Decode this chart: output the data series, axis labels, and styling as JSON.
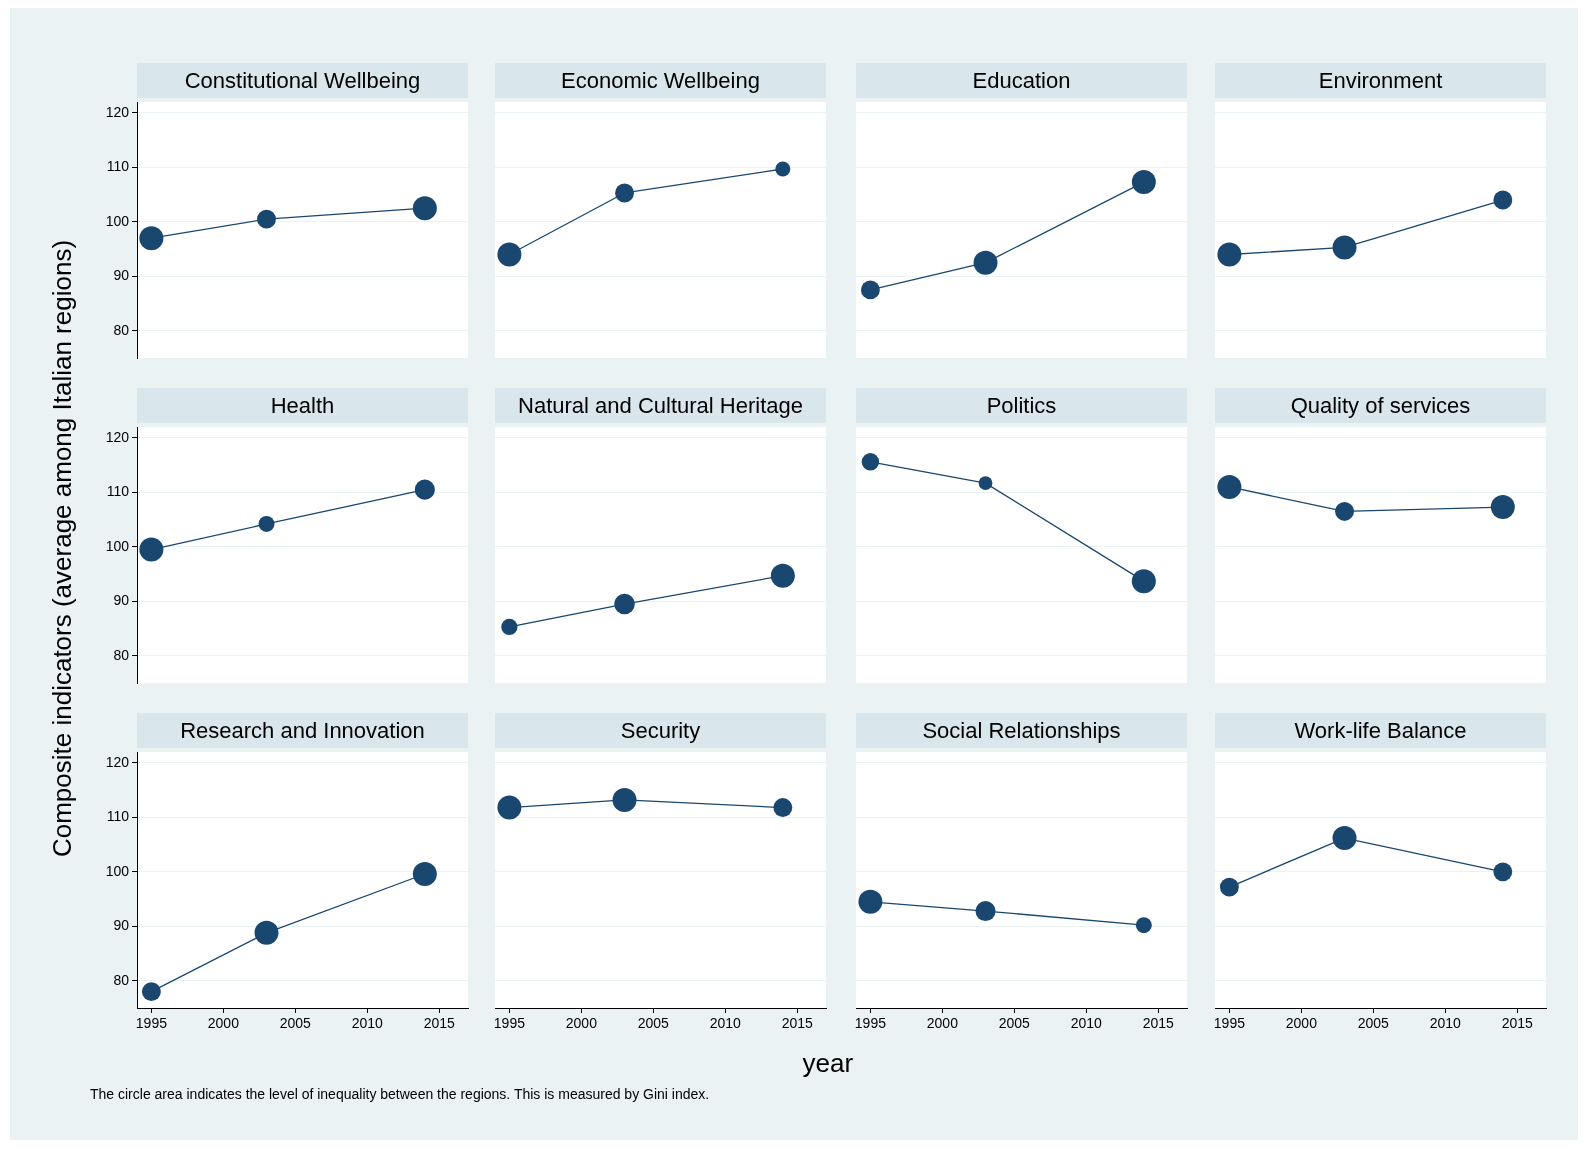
{
  "chart_data": [
    {
      "type": "bubble",
      "title": "Constitutional Wellbeing",
      "x": [
        1995,
        2003,
        2014
      ],
      "series": [
        {
          "type": "line",
          "color": "#1a476f",
          "values": [
            97,
            100.5,
            102.5
          ]
        },
        {
          "type": "bubble",
          "color": "#1a476f",
          "values": [
            97,
            100.5,
            102.5
          ],
          "sizes": [
            1,
            0.62,
            1
          ]
        }
      ],
      "xlim": [
        1994,
        2017
      ],
      "xticks": [
        1995,
        2000,
        2005,
        2010,
        2015
      ],
      "ylim": [
        75,
        122
      ],
      "yticks": [
        80,
        90,
        100,
        110,
        120
      ],
      "grid": "y",
      "tick_labels": "y"
    },
    {
      "type": "bubble",
      "title": "Economic Wellbeing",
      "x": [
        1995,
        2003,
        2014
      ],
      "series": [
        {
          "type": "line",
          "color": "#1a476f",
          "values": [
            94,
            105.3,
            109.7
          ]
        },
        {
          "type": "bubble",
          "color": "#1a476f",
          "values": [
            94,
            105.3,
            109.7
          ],
          "sizes": [
            1,
            0.62,
            0.39
          ]
        }
      ],
      "xlim": [
        1994,
        2017
      ],
      "xticks": [
        1995,
        2000,
        2005,
        2010,
        2015
      ],
      "ylim": [
        75,
        122
      ],
      "yticks": [
        80,
        90,
        100,
        110,
        120
      ],
      "grid": "y",
      "tick_labels": false
    },
    {
      "type": "bubble",
      "title": "Education",
      "x": [
        1995,
        2003,
        2014
      ],
      "series": [
        {
          "type": "line",
          "color": "#1a476f",
          "values": [
            87.5,
            92.5,
            107.3
          ]
        },
        {
          "type": "bubble",
          "color": "#1a476f",
          "values": [
            87.5,
            92.5,
            107.3
          ],
          "sizes": [
            0.62,
            1,
            1
          ]
        }
      ],
      "xlim": [
        1994,
        2017
      ],
      "xticks": [
        1995,
        2000,
        2005,
        2010,
        2015
      ],
      "ylim": [
        75,
        122
      ],
      "yticks": [
        80,
        90,
        100,
        110,
        120
      ],
      "grid": "y",
      "tick_labels": false
    },
    {
      "type": "bubble",
      "title": "Environment",
      "x": [
        1995,
        2003,
        2014
      ],
      "series": [
        {
          "type": "line",
          "color": "#1a476f",
          "values": [
            94,
            95.3,
            104
          ]
        },
        {
          "type": "bubble",
          "color": "#1a476f",
          "values": [
            94,
            95.3,
            104
          ],
          "sizes": [
            1,
            1,
            0.62
          ]
        }
      ],
      "xlim": [
        1994,
        2017
      ],
      "xticks": [
        1995,
        2000,
        2005,
        2010,
        2015
      ],
      "ylim": [
        75,
        122
      ],
      "yticks": [
        80,
        90,
        100,
        110,
        120
      ],
      "grid": "y",
      "tick_labels": false
    },
    {
      "type": "bubble",
      "title": "Health",
      "ylabel": "Composite indicators (average among Italian regions)",
      "x": [
        1995,
        2003,
        2014
      ],
      "series": [
        {
          "type": "line",
          "color": "#1a476f",
          "values": [
            99.5,
            104.2,
            110.5
          ]
        },
        {
          "type": "bubble",
          "color": "#1a476f",
          "values": [
            99.5,
            104.2,
            110.5
          ],
          "sizes": [
            1,
            0.44,
            0.7
          ]
        }
      ],
      "xlim": [
        1994,
        2017
      ],
      "xticks": [
        1995,
        2000,
        2005,
        2010,
        2015
      ],
      "ylim": [
        75,
        122
      ],
      "yticks": [
        80,
        90,
        100,
        110,
        120
      ],
      "grid": "y",
      "tick_labels": "y"
    },
    {
      "type": "bubble",
      "title": "Natural and Cultural Heritage",
      "x": [
        1995,
        2003,
        2014
      ],
      "series": [
        {
          "type": "line",
          "color": "#1a476f",
          "values": [
            85.3,
            89.5,
            94.7
          ]
        },
        {
          "type": "bubble",
          "color": "#1a476f",
          "values": [
            85.3,
            89.5,
            94.7
          ],
          "sizes": [
            0.46,
            0.74,
            1
          ]
        }
      ],
      "xlim": [
        1994,
        2017
      ],
      "xticks": [
        1995,
        2000,
        2005,
        2010,
        2015
      ],
      "ylim": [
        75,
        122
      ],
      "yticks": [
        80,
        90,
        100,
        110,
        120
      ],
      "grid": "y",
      "tick_labels": false
    },
    {
      "type": "bubble",
      "title": "Politics",
      "x": [
        1995,
        2003,
        2014
      ],
      "series": [
        {
          "type": "line",
          "color": "#1a476f",
          "values": [
            115.6,
            111.7,
            93.7
          ]
        },
        {
          "type": "bubble",
          "color": "#1a476f",
          "values": [
            115.6,
            111.7,
            93.7
          ],
          "sizes": [
            0.53,
            0.33,
            1
          ]
        }
      ],
      "xlim": [
        1994,
        2017
      ],
      "xticks": [
        1995,
        2000,
        2005,
        2010,
        2015
      ],
      "ylim": [
        75,
        122
      ],
      "yticks": [
        80,
        90,
        100,
        110,
        120
      ],
      "grid": "y",
      "tick_labels": false
    },
    {
      "type": "bubble",
      "title": "Quality of services",
      "x": [
        1995,
        2003,
        2014
      ],
      "series": [
        {
          "type": "line",
          "color": "#1a476f",
          "values": [
            111,
            106.5,
            107.3
          ]
        },
        {
          "type": "bubble",
          "color": "#1a476f",
          "values": [
            111,
            106.5,
            107.3
          ],
          "sizes": [
            1,
            0.62,
            1
          ]
        }
      ],
      "xlim": [
        1994,
        2017
      ],
      "xticks": [
        1995,
        2000,
        2005,
        2010,
        2015
      ],
      "ylim": [
        75,
        122
      ],
      "yticks": [
        80,
        90,
        100,
        110,
        120
      ],
      "grid": "y",
      "tick_labels": false
    },
    {
      "type": "bubble",
      "title": "Research and Innovation",
      "annotations": [
        "The circle area indicates the level of inequality between the regions. This is measured by Gini index."
      ],
      "x": [
        1995,
        2003,
        2014
      ],
      "series": [
        {
          "type": "line",
          "color": "#1a476f",
          "values": [
            78,
            88.8,
            99.6
          ]
        },
        {
          "type": "bubble",
          "color": "#1a476f",
          "values": [
            78,
            88.8,
            99.6
          ],
          "sizes": [
            0.62,
            1,
            1
          ]
        }
      ],
      "xlim": [
        1994,
        2017
      ],
      "xticks": [
        1995,
        2000,
        2005,
        2010,
        2015
      ],
      "ylim": [
        75,
        122
      ],
      "yticks": [
        80,
        90,
        100,
        110,
        120
      ],
      "grid": "y"
    },
    {
      "type": "bubble",
      "title": "Security",
      "xlabel": "year",
      "x": [
        1995,
        2003,
        2014
      ],
      "series": [
        {
          "type": "line",
          "color": "#1a476f",
          "values": [
            111.8,
            113.2,
            111.8
          ]
        },
        {
          "type": "bubble",
          "color": "#1a476f",
          "values": [
            111.8,
            113.2,
            111.8
          ],
          "sizes": [
            1,
            1,
            0.62
          ]
        }
      ],
      "xlim": [
        1994,
        2017
      ],
      "xticks": [
        1995,
        2000,
        2005,
        2010,
        2015
      ],
      "ylim": [
        75,
        122
      ],
      "yticks": [
        80,
        90,
        100,
        110,
        120
      ],
      "grid": "y",
      "tick_labels": "x"
    },
    {
      "type": "bubble",
      "title": "Social Relationships",
      "x": [
        1995,
        2003,
        2014
      ],
      "series": [
        {
          "type": "line",
          "color": "#1a476f",
          "values": [
            94.5,
            92.8,
            90.2
          ]
        },
        {
          "type": "bubble",
          "color": "#1a476f",
          "values": [
            94.5,
            92.8,
            90.2
          ],
          "sizes": [
            1,
            0.7,
            0.44
          ]
        }
      ],
      "xlim": [
        1994,
        2017
      ],
      "xticks": [
        1995,
        2000,
        2005,
        2010,
        2015
      ],
      "ylim": [
        75,
        122
      ],
      "yticks": [
        80,
        90,
        100,
        110,
        120
      ],
      "grid": "y",
      "tick_labels": "x"
    },
    {
      "type": "bubble",
      "title": "Work-life Balance",
      "x": [
        1995,
        2003,
        2014
      ],
      "series": [
        {
          "type": "line",
          "color": "#1a476f",
          "values": [
            97.2,
            106.2,
            100
          ]
        },
        {
          "type": "bubble",
          "color": "#1a476f",
          "values": [
            97.2,
            106.2,
            100
          ],
          "sizes": [
            0.62,
            1,
            0.62
          ]
        }
      ],
      "xlim": [
        1994,
        2017
      ],
      "xticks": [
        1995,
        2000,
        2005,
        2010,
        2015
      ],
      "ylim": [
        75,
        122
      ],
      "yticks": [
        80,
        90,
        100,
        110,
        120
      ],
      "grid": "y",
      "tick_labels": "x"
    }
  ]
}
